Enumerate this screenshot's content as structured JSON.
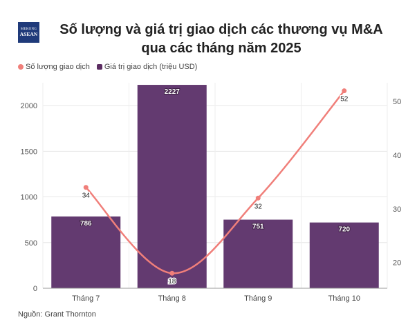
{
  "logo": {
    "line1": "MEKONG",
    "line2": "ASEAN"
  },
  "title": "Số lượng và giá trị giao dịch các thương vụ M&A qua các tháng năm 2025",
  "legend": [
    {
      "label": "Số lượng giao dịch",
      "color": "#f07f7a",
      "shape": "circle"
    },
    {
      "label": "Giá trị giao dịch (triệu USD)",
      "color": "#5c2d62",
      "shape": "square"
    }
  ],
  "source": "Nguồn: Grant Thornton",
  "chart_data": {
    "type": "bar+line",
    "categories": [
      "Tháng 7",
      "Tháng 8",
      "Tháng 9",
      "Tháng 10"
    ],
    "bars": {
      "name": "Giá trị giao dịch (triệu USD)",
      "values": [
        786,
        2227,
        751,
        720
      ],
      "color": "#633a70"
    },
    "line": {
      "name": "Số lượng giao dịch",
      "values": [
        34,
        18,
        32,
        52
      ],
      "color": "#f07f7a"
    },
    "y_left": {
      "min": 0,
      "max": 2250,
      "ticks": [
        0,
        500,
        1000,
        1500,
        2000
      ]
    },
    "y_right": {
      "min": 15.2,
      "max": 53.5,
      "ticks": [
        20,
        30,
        40,
        50
      ]
    },
    "grid": true
  }
}
